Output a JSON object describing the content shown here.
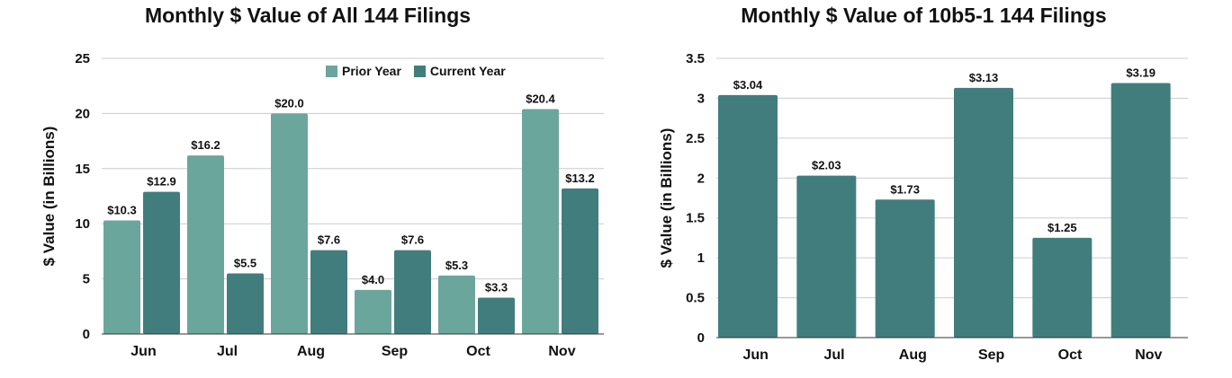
{
  "colors": {
    "prior": "#6ba69c",
    "current": "#427d7d",
    "grid": "#cccccc",
    "axis": "#333333"
  },
  "chart_data": [
    {
      "type": "bar",
      "title": "Monthly $ Value of All 144 Filings",
      "ylabel": "$ Value (in Billions)",
      "xlabel": "",
      "categories": [
        "Jun",
        "Jul",
        "Aug",
        "Sep",
        "Oct",
        "Nov"
      ],
      "ylim": [
        0,
        25
      ],
      "yticks": [
        "0",
        "5",
        "10",
        "15",
        "20",
        "25"
      ],
      "legend_position": "top-right",
      "grid": true,
      "series": [
        {
          "name": "Prior Year",
          "values": [
            10.3,
            16.2,
            20.0,
            4.0,
            5.3,
            20.4
          ],
          "labels": [
            "$10.3",
            "$16.2",
            "$20.0",
            "$4.0",
            "$5.3",
            "$20.4"
          ]
        },
        {
          "name": "Current Year",
          "values": [
            12.9,
            5.5,
            7.6,
            7.6,
            3.3,
            13.2
          ],
          "labels": [
            "$12.9",
            "$5.5",
            "$7.6",
            "$7.6",
            "$3.3",
            "$13.2"
          ]
        }
      ]
    },
    {
      "type": "bar",
      "title": "Monthly $ Value of 10b5-1 144 Filings",
      "ylabel": "$ Value (in Billions)",
      "xlabel": "",
      "categories": [
        "Jun",
        "Jul",
        "Aug",
        "Sep",
        "Oct",
        "Nov"
      ],
      "ylim": [
        0,
        3.5
      ],
      "yticks": [
        "0",
        "0.5",
        "1",
        "1.5",
        "2",
        "2.5",
        "3",
        "3.5"
      ],
      "grid": true,
      "series": [
        {
          "values": [
            3.04,
            2.03,
            1.73,
            3.13,
            1.25,
            3.19
          ],
          "labels": [
            "$3.04",
            "$2.03",
            "$1.73",
            "$3.13",
            "$1.25",
            "$3.19"
          ]
        }
      ]
    }
  ]
}
